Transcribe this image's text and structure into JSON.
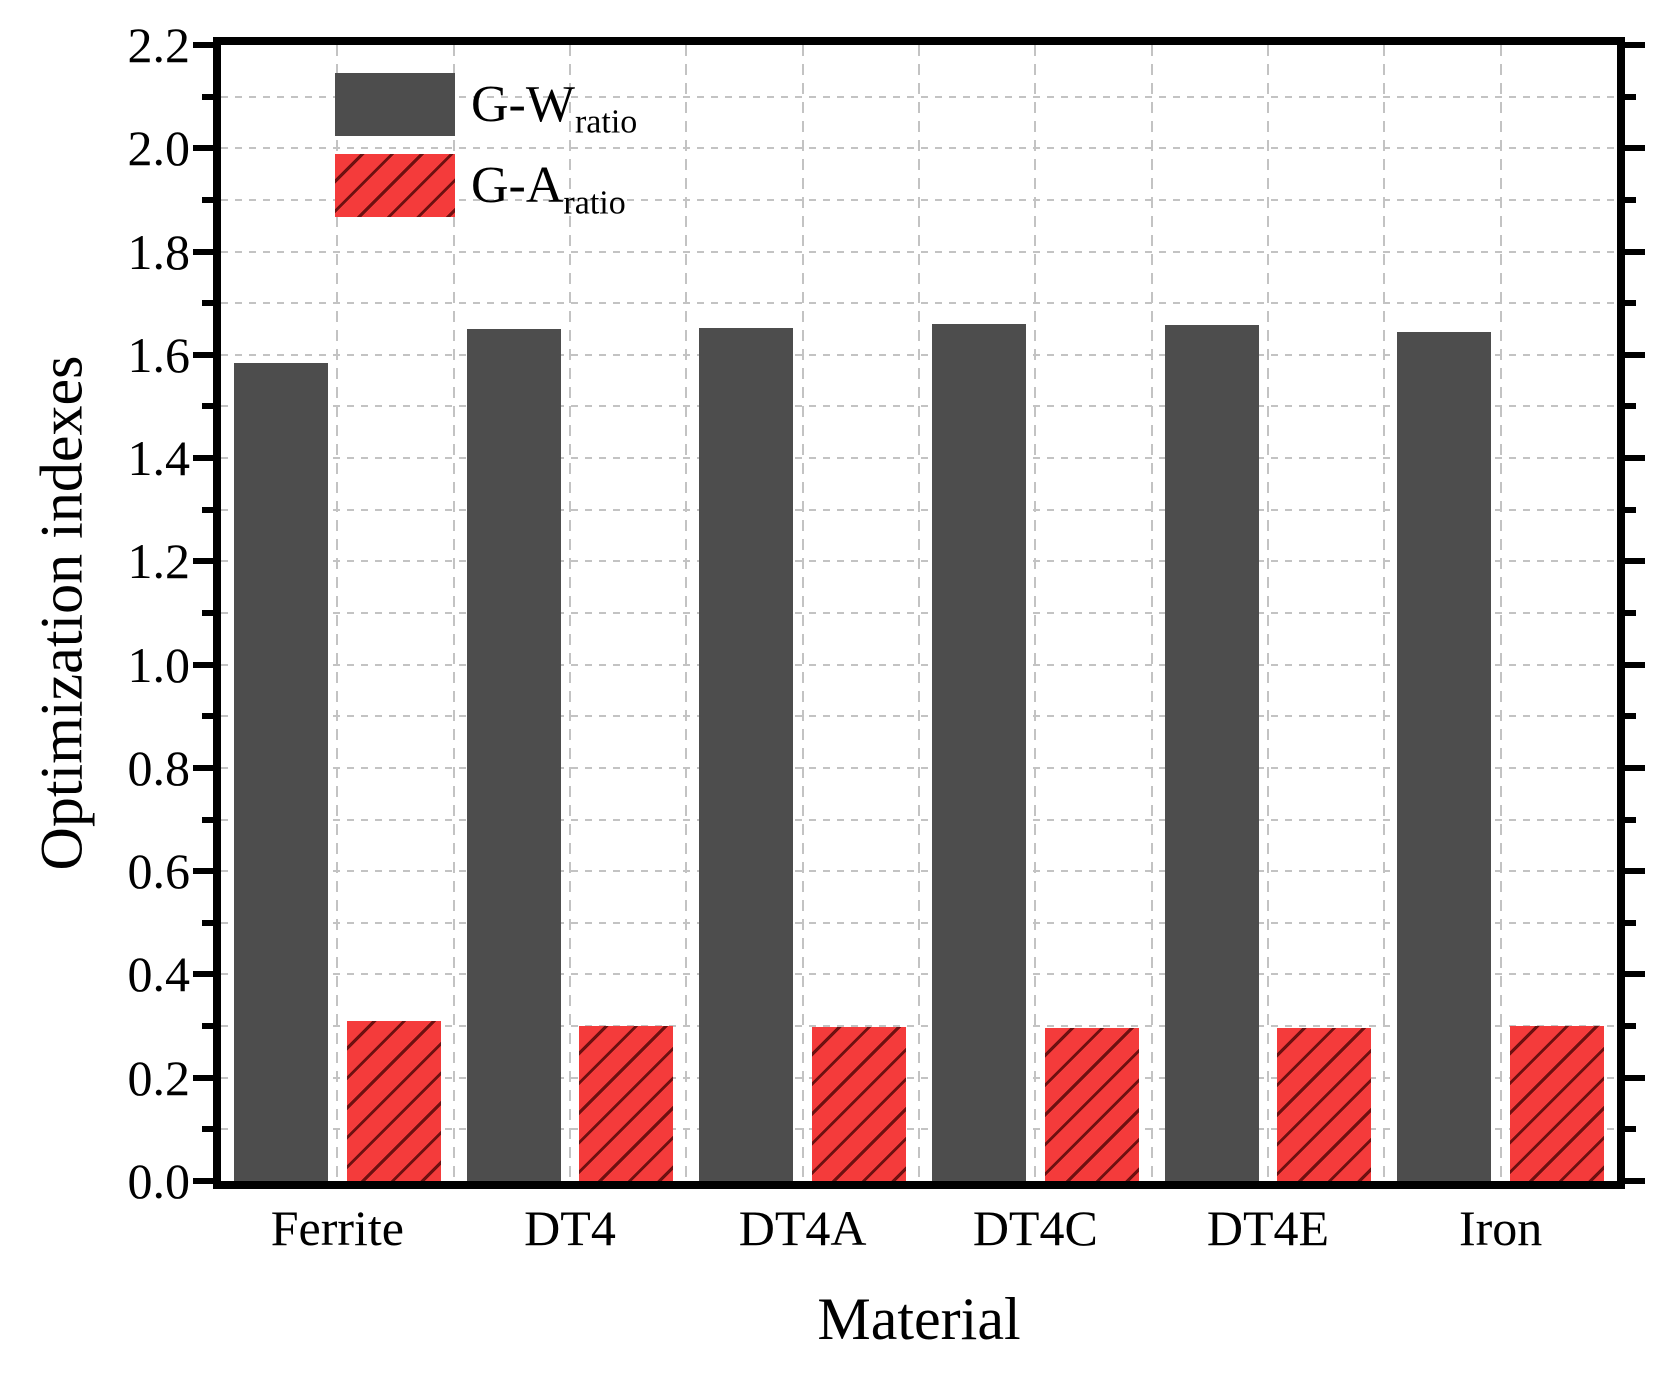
{
  "chart_data": {
    "type": "bar",
    "title": "",
    "xlabel": "Material",
    "ylabel": "Optimization indexes",
    "categories": [
      "Ferrite",
      "DT4",
      "DT4A",
      "DT4C",
      "DT4E",
      "Iron"
    ],
    "series": [
      {
        "name": "G-W",
        "name_subscript": "ratio",
        "color": "#4d4d4d",
        "hatch": false,
        "values": [
          1.585,
          1.65,
          1.652,
          1.66,
          1.658,
          1.645
        ]
      },
      {
        "name": "G-A",
        "name_subscript": "ratio",
        "color": "#f43b3b",
        "hatch": true,
        "hatch_color": "#6e1010",
        "values": [
          0.31,
          0.3,
          0.298,
          0.297,
          0.297,
          0.3
        ]
      }
    ],
    "ylim": [
      0,
      2.2
    ],
    "ytick_labels": [
      "0.0",
      "0.2",
      "0.4",
      "0.6",
      "0.8",
      "1.0",
      "1.2",
      "1.4",
      "1.6",
      "1.8",
      "2.0",
      "2.2"
    ],
    "ytick_major_step": 0.2,
    "ytick_minor_step": 0.1,
    "grid": {
      "on": true,
      "horizontal_step": 0.1,
      "vertical_divisions_per_category": 2,
      "color": "#c3c3c3",
      "style": "dashed"
    },
    "legend_position": "top-left",
    "axis_color": "#000000",
    "background": "#ffffff"
  }
}
